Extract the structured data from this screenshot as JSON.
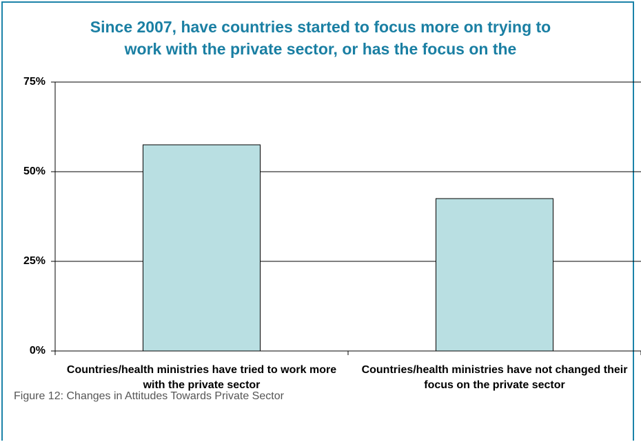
{
  "chart_data": {
    "type": "bar",
    "title": [
      "Since 2007, have countries started to focus more on trying to",
      "work with the private sector, or has the focus on the"
    ],
    "categories": [
      "Countries/health ministries have tried to work more with the private sector",
      "Countries/health ministries have not changed their focus on the private sector"
    ],
    "values": [
      57.5,
      42.5
    ],
    "color": "#b9dfe2",
    "ylim": [
      0,
      75
    ],
    "yticks": [
      {
        "value": 0,
        "label": "0%"
      },
      {
        "value": 25,
        "label": "25%"
      },
      {
        "value": 50,
        "label": "50%"
      },
      {
        "value": 75,
        "label": "75%"
      }
    ],
    "grid": true,
    "caption": "Figure 12: Changes in Attitudes Towards Private Sector"
  }
}
